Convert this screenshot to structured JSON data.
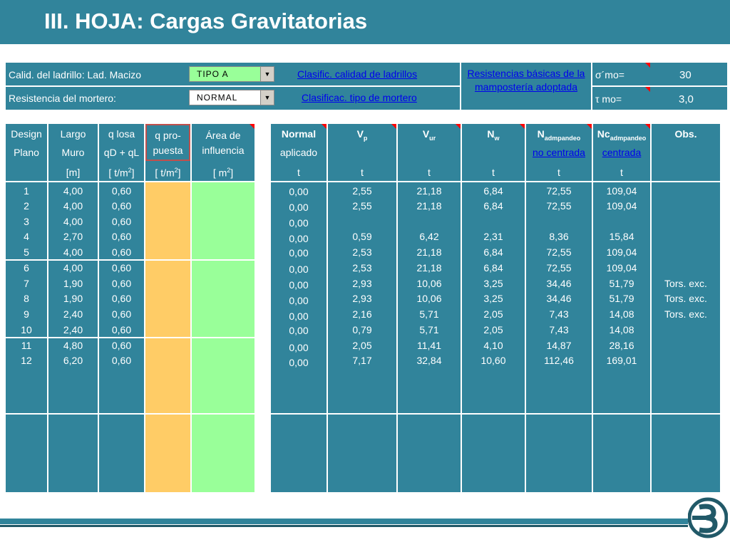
{
  "title": "III. HOJA: Cargas Gravitatorias",
  "params": {
    "ladrillo_label": "Calid. del ladrillo: Lad. Macizo",
    "ladrillo_value": "TIPO A",
    "mortero_label": "Resistencia del mortero:",
    "mortero_value": "NORMAL",
    "link_ladrillo": "Clasific. calidad de ladrillos",
    "link_mortero": "Clasificac. tipo de mortero",
    "link_resistencias": "Resistencias básicas de la mampostería adoptada",
    "sigma_label": "σ´mo=",
    "sigma_value": "30",
    "tau_label": "τ mo=",
    "tau_value": "3,0"
  },
  "left_headers": {
    "design": [
      "Design",
      "Plano",
      ""
    ],
    "largo": [
      "Largo",
      "Muro",
      "[m]"
    ],
    "qlosa": [
      "q losa",
      "qD + qL",
      "[ t/m",
      "2",
      "]"
    ],
    "qprop": [
      "q  pro-",
      "puesta",
      "[ t/m",
      "2",
      "]"
    ],
    "area": [
      "Área de",
      "influencia",
      "[ m",
      "2",
      "]"
    ]
  },
  "right_headers": {
    "normal": [
      "Normal",
      "aplicado",
      "t"
    ],
    "vp": [
      "V",
      "p",
      "t"
    ],
    "vur": [
      "V",
      "ur",
      "t"
    ],
    "nw": [
      "N",
      "w",
      "t"
    ],
    "nadm": [
      "N",
      "admpandeo",
      "no centrada",
      "t"
    ],
    "ncadm": [
      "Nc",
      "admpandeo",
      "centrada",
      "t"
    ],
    "obs": [
      "Obs."
    ]
  },
  "rows": [
    {
      "design": "1",
      "largo": "4,00",
      "qlosa": "0,60",
      "normal": "0,00",
      "vp": "2,55",
      "vur": "21,18",
      "nw": "6,84",
      "nadm": "72,55",
      "nc": "109,04",
      "obs": ""
    },
    {
      "design": "2",
      "largo": "4,00",
      "qlosa": "0,60",
      "normal": "0,00",
      "vp": "2,55",
      "vur": "21,18",
      "nw": "6,84",
      "nadm": "72,55",
      "nc": "109,04",
      "obs": ""
    },
    {
      "design": "3",
      "largo": "4,00",
      "qlosa": "0,60",
      "normal": "0,00",
      "vp": "",
      "vur": "",
      "nw": "",
      "nadm": "",
      "nc": "",
      "obs": ""
    },
    {
      "design": "4",
      "largo": "2,70",
      "qlosa": "0,60",
      "normal": "0,00",
      "vp": "0,59",
      "vur": "6,42",
      "nw": "2,31",
      "nadm": "8,36",
      "nc": "15,84",
      "obs": ""
    },
    {
      "design": "5",
      "largo": "4,00",
      "qlosa": "0,60",
      "normal": "0,00",
      "vp": "2,53",
      "vur": "21,18",
      "nw": "6,84",
      "nadm": "72,55",
      "nc": "109,04",
      "obs": ""
    },
    {
      "design": "6",
      "largo": "4,00",
      "qlosa": "0,60",
      "normal": "0,00",
      "vp": "2,53",
      "vur": "21,18",
      "nw": "6,84",
      "nadm": "72,55",
      "nc": "109,04",
      "obs": ""
    },
    {
      "design": "7",
      "largo": "1,90",
      "qlosa": "0,60",
      "normal": "0,00",
      "vp": "2,93",
      "vur": "10,06",
      "nw": "3,25",
      "nadm": "34,46",
      "nc": "51,79",
      "obs": "Tors. exc."
    },
    {
      "design": "8",
      "largo": "1,90",
      "qlosa": "0,60",
      "normal": "0,00",
      "vp": "2,93",
      "vur": "10,06",
      "nw": "3,25",
      "nadm": "34,46",
      "nc": "51,79",
      "obs": "Tors. exc."
    },
    {
      "design": "9",
      "largo": "2,40",
      "qlosa": "0,60",
      "normal": "0,00",
      "vp": "2,16",
      "vur": "5,71",
      "nw": "2,05",
      "nadm": "7,43",
      "nc": "14,08",
      "obs": "Tors. exc."
    },
    {
      "design": "10",
      "largo": "2,40",
      "qlosa": "0,60",
      "normal": "0,00",
      "vp": "0,79",
      "vur": "5,71",
      "nw": "2,05",
      "nadm": "7,43",
      "nc": "14,08",
      "obs": ""
    },
    {
      "design": "11",
      "largo": "4,80",
      "qlosa": "0,60",
      "normal": "0,00",
      "vp": "2,05",
      "vur": "11,41",
      "nw": "4,10",
      "nadm": "14,87",
      "nc": "28,16",
      "obs": ""
    },
    {
      "design": "12",
      "largo": "6,20",
      "qlosa": "0,60",
      "normal": "0,00",
      "vp": "7,17",
      "vur": "32,84",
      "nw": "10,60",
      "nadm": "112,46",
      "nc": "169,01",
      "obs": ""
    }
  ],
  "colors": {
    "teal": "#31849b",
    "orange": "#ffcc66",
    "green": "#99ff99",
    "link": "#0000ee"
  }
}
